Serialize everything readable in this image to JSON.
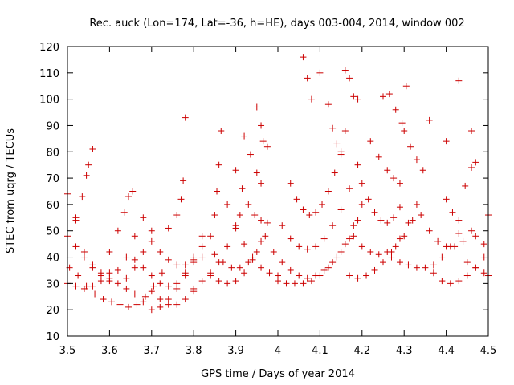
{
  "chart_data": {
    "type": "scatter",
    "title": "Rec. auck (Lon=174, Lat=-36, h=HE), days 003-004, 2014, window 002",
    "xlabel": "GPS time / Days of year 2014",
    "ylabel": "STEC from uqrg / TECUs",
    "xlim": [
      3.5,
      4.5
    ],
    "ylim": [
      10,
      120
    ],
    "xticks": [
      "3.5",
      "3.6",
      "3.7",
      "3.8",
      "3.9",
      "4",
      "4.1",
      "4.2",
      "4.3",
      "4.4",
      "4.5"
    ],
    "yticks": [
      "10",
      "20",
      "30",
      "40",
      "50",
      "60",
      "70",
      "80",
      "90",
      "100",
      "110",
      "120"
    ],
    "grid": false,
    "marker": "plus",
    "color": "#cc0000",
    "tracks": [
      [
        [
          3.5,
          64
        ],
        [
          3.52,
          54
        ],
        [
          3.54,
          42
        ],
        [
          3.56,
          37
        ],
        [
          3.58,
          34
        ],
        [
          3.6,
          32
        ],
        [
          3.62,
          35
        ],
        [
          3.64,
          40
        ],
        [
          3.66,
          48
        ],
        [
          3.68,
          55
        ]
      ],
      [
        [
          3.5,
          48
        ],
        [
          3.52,
          44
        ],
        [
          3.54,
          40
        ],
        [
          3.56,
          36
        ],
        [
          3.58,
          33
        ],
        [
          3.6,
          31
        ],
        [
          3.62,
          30
        ],
        [
          3.64,
          32
        ],
        [
          3.66,
          36
        ],
        [
          3.68,
          42
        ],
        [
          3.7,
          50
        ]
      ],
      [
        [
          3.505,
          36
        ],
        [
          3.525,
          33
        ],
        [
          3.545,
          29
        ],
        [
          3.565,
          26
        ],
        [
          3.585,
          24
        ],
        [
          3.605,
          23
        ],
        [
          3.625,
          22
        ],
        [
          3.645,
          21
        ],
        [
          3.665,
          22
        ],
        [
          3.685,
          25
        ],
        [
          3.705,
          29
        ],
        [
          3.725,
          34
        ]
      ],
      [
        [
          3.5,
          30
        ],
        [
          3.52,
          29
        ],
        [
          3.54,
          28
        ],
        [
          3.56,
          29
        ],
        [
          3.58,
          31
        ],
        [
          3.6,
          34
        ]
      ],
      [
        [
          3.52,
          55
        ],
        [
          3.535,
          63
        ],
        [
          3.545,
          71
        ],
        [
          3.55,
          75
        ],
        [
          3.56,
          81
        ]
      ],
      [
        [
          3.6,
          42
        ],
        [
          3.62,
          50
        ],
        [
          3.635,
          57
        ],
        [
          3.645,
          63
        ],
        [
          3.655,
          65
        ]
      ],
      [
        [
          3.64,
          28
        ],
        [
          3.66,
          26
        ],
        [
          3.68,
          23
        ],
        [
          3.7,
          20
        ],
        [
          3.72,
          21
        ],
        [
          3.74,
          24
        ],
        [
          3.76,
          28
        ],
        [
          3.78,
          33
        ],
        [
          3.8,
          38
        ]
      ],
      [
        [
          3.66,
          39
        ],
        [
          3.68,
          36
        ],
        [
          3.7,
          33
        ],
        [
          3.72,
          30
        ],
        [
          3.74,
          29
        ],
        [
          3.76,
          30
        ],
        [
          3.78,
          34
        ],
        [
          3.8,
          40
        ],
        [
          3.82,
          48
        ]
      ],
      [
        [
          3.7,
          46
        ],
        [
          3.72,
          42
        ],
        [
          3.74,
          39
        ],
        [
          3.76,
          37
        ],
        [
          3.78,
          37
        ],
        [
          3.8,
          39
        ],
        [
          3.82,
          44
        ]
      ],
      [
        [
          3.7,
          27
        ],
        [
          3.72,
          24
        ],
        [
          3.74,
          22
        ],
        [
          3.76,
          22
        ],
        [
          3.78,
          24
        ],
        [
          3.8,
          27
        ]
      ],
      [
        [
          3.74,
          51
        ],
        [
          3.76,
          56
        ],
        [
          3.77,
          62
        ],
        [
          3.775,
          69
        ],
        [
          3.78,
          93
        ]
      ],
      [
        [
          3.8,
          28
        ],
        [
          3.82,
          31
        ],
        [
          3.84,
          34
        ],
        [
          3.86,
          38
        ],
        [
          3.88,
          44
        ],
        [
          3.9,
          51
        ],
        [
          3.91,
          56
        ]
      ],
      [
        [
          3.82,
          40
        ],
        [
          3.84,
          48
        ],
        [
          3.85,
          56
        ],
        [
          3.855,
          65
        ],
        [
          3.86,
          75
        ],
        [
          3.865,
          88
        ]
      ],
      [
        [
          3.84,
          33
        ],
        [
          3.86,
          31
        ],
        [
          3.88,
          30
        ],
        [
          3.9,
          31
        ],
        [
          3.92,
          34
        ],
        [
          3.94,
          39
        ],
        [
          3.96,
          46
        ],
        [
          3.975,
          53
        ]
      ],
      [
        [
          3.85,
          41
        ],
        [
          3.87,
          38
        ],
        [
          3.89,
          36
        ],
        [
          3.91,
          36
        ],
        [
          3.93,
          38
        ],
        [
          3.95,
          42
        ],
        [
          3.97,
          48
        ]
      ],
      [
        [
          3.88,
          60
        ],
        [
          3.9,
          52
        ],
        [
          3.92,
          45
        ],
        [
          3.94,
          40
        ],
        [
          3.96,
          36
        ],
        [
          3.98,
          34
        ],
        [
          4.0,
          33
        ]
      ],
      [
        [
          3.9,
          73
        ],
        [
          3.915,
          66
        ],
        [
          3.93,
          60
        ],
        [
          3.945,
          56
        ],
        [
          3.96,
          54
        ]
      ],
      [
        [
          3.92,
          86
        ],
        [
          3.935,
          79
        ],
        [
          3.95,
          72
        ],
        [
          3.96,
          68
        ]
      ],
      [
        [
          3.95,
          97
        ],
        [
          3.96,
          90
        ],
        [
          3.965,
          84
        ],
        [
          3.975,
          82
        ]
      ],
      [
        [
          3.99,
          42
        ],
        [
          4.01,
          38
        ],
        [
          4.03,
          35
        ],
        [
          4.05,
          33
        ],
        [
          4.07,
          32
        ],
        [
          4.09,
          33
        ],
        [
          4.11,
          35
        ],
        [
          4.13,
          38
        ],
        [
          4.15,
          42
        ],
        [
          4.17,
          47
        ],
        [
          4.19,
          54
        ]
      ],
      [
        [
          4.0,
          31
        ],
        [
          4.02,
          30
        ],
        [
          4.04,
          30
        ],
        [
          4.06,
          30
        ],
        [
          4.08,
          31
        ],
        [
          4.1,
          33
        ],
        [
          4.12,
          36
        ],
        [
          4.14,
          40
        ],
        [
          4.16,
          45
        ],
        [
          4.18,
          52
        ],
        [
          4.2,
          60
        ]
      ],
      [
        [
          4.01,
          52
        ],
        [
          4.03,
          47
        ],
        [
          4.05,
          44
        ],
        [
          4.07,
          43
        ],
        [
          4.09,
          44
        ],
        [
          4.11,
          47
        ],
        [
          4.13,
          52
        ],
        [
          4.15,
          58
        ],
        [
          4.17,
          66
        ],
        [
          4.19,
          75
        ]
      ],
      [
        [
          4.03,
          68
        ],
        [
          4.045,
          62
        ],
        [
          4.06,
          58
        ],
        [
          4.075,
          56
        ],
        [
          4.09,
          57
        ],
        [
          4.105,
          60
        ],
        [
          4.12,
          65
        ],
        [
          4.135,
          72
        ],
        [
          4.15,
          80
        ],
        [
          4.16,
          88
        ]
      ],
      [
        [
          4.06,
          116
        ],
        [
          4.07,
          108
        ],
        [
          4.08,
          100
        ]
      ],
      [
        [
          4.1,
          110
        ],
        [
          4.12,
          98
        ],
        [
          4.13,
          89
        ],
        [
          4.14,
          83
        ],
        [
          4.15,
          79
        ]
      ],
      [
        [
          4.16,
          111
        ],
        [
          4.17,
          108
        ],
        [
          4.18,
          101
        ],
        [
          4.19,
          100
        ]
      ],
      [
        [
          4.17,
          33
        ],
        [
          4.19,
          32
        ],
        [
          4.21,
          33
        ],
        [
          4.23,
          35
        ],
        [
          4.25,
          38
        ],
        [
          4.27,
          42
        ],
        [
          4.29,
          47
        ],
        [
          4.31,
          53
        ],
        [
          4.33,
          60
        ]
      ],
      [
        [
          4.18,
          48
        ],
        [
          4.2,
          44
        ],
        [
          4.22,
          42
        ],
        [
          4.24,
          41
        ],
        [
          4.26,
          42
        ],
        [
          4.28,
          44
        ],
        [
          4.3,
          48
        ],
        [
          4.32,
          54
        ]
      ],
      [
        [
          4.2,
          68
        ],
        [
          4.215,
          62
        ],
        [
          4.23,
          57
        ],
        [
          4.245,
          54
        ],
        [
          4.26,
          53
        ],
        [
          4.275,
          55
        ],
        [
          4.29,
          59
        ]
      ],
      [
        [
          4.22,
          84
        ],
        [
          4.24,
          78
        ],
        [
          4.26,
          73
        ],
        [
          4.275,
          70
        ],
        [
          4.29,
          68
        ]
      ],
      [
        [
          4.25,
          101
        ],
        [
          4.265,
          102
        ],
        [
          4.28,
          96
        ],
        [
          4.295,
          91
        ],
        [
          4.305,
          105
        ]
      ],
      [
        [
          4.27,
          40
        ],
        [
          4.29,
          38
        ],
        [
          4.31,
          37
        ],
        [
          4.33,
          36
        ],
        [
          4.35,
          36
        ],
        [
          4.37,
          37
        ],
        [
          4.39,
          40
        ],
        [
          4.41,
          44
        ],
        [
          4.43,
          49
        ]
      ],
      [
        [
          4.3,
          88
        ],
        [
          4.315,
          82
        ],
        [
          4.33,
          77
        ],
        [
          4.345,
          73
        ],
        [
          4.36,
          92
        ]
      ],
      [
        [
          4.34,
          56
        ],
        [
          4.36,
          50
        ],
        [
          4.38,
          46
        ],
        [
          4.4,
          44
        ],
        [
          4.42,
          44
        ],
        [
          4.44,
          46
        ],
        [
          4.46,
          50
        ]
      ],
      [
        [
          4.37,
          34
        ],
        [
          4.39,
          31
        ],
        [
          4.41,
          30
        ],
        [
          4.43,
          31
        ],
        [
          4.45,
          33
        ],
        [
          4.47,
          36
        ],
        [
          4.49,
          40
        ]
      ],
      [
        [
          4.4,
          62
        ],
        [
          4.415,
          57
        ],
        [
          4.43,
          54
        ],
        [
          4.445,
          67
        ],
        [
          4.46,
          74
        ],
        [
          4.47,
          76
        ]
      ],
      [
        [
          4.4,
          84
        ],
        [
          4.43,
          107
        ],
        [
          4.46,
          88
        ]
      ],
      [
        [
          4.45,
          38
        ],
        [
          4.47,
          36
        ],
        [
          4.49,
          34
        ],
        [
          4.5,
          33
        ]
      ],
      [
        [
          4.47,
          48
        ],
        [
          4.49,
          45
        ],
        [
          4.5,
          56
        ]
      ]
    ]
  }
}
